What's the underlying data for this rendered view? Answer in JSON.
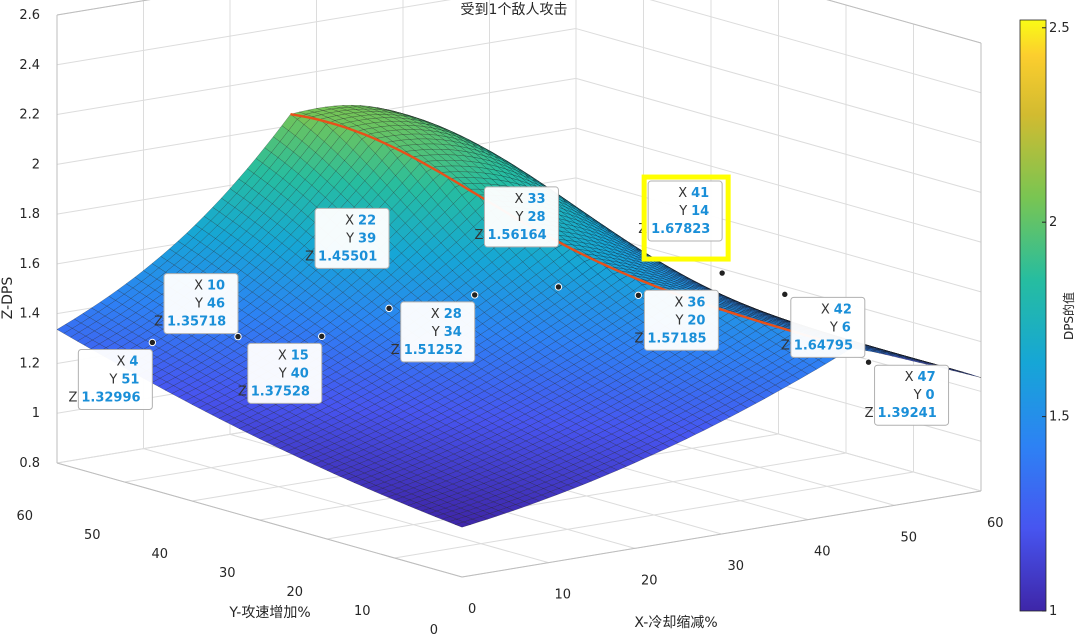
{
  "chart_data": {
    "type": "surface",
    "title": "受到1个敌人攻击",
    "xlabel": "X-冷却缩减%",
    "ylabel": "Y-攻速增加%",
    "zlabel": "Z-DPS",
    "x_range": [
      0,
      60
    ],
    "y_range": [
      0,
      60
    ],
    "z_range": [
      0.8,
      2.6
    ],
    "x_ticks": [
      "0",
      "10",
      "20",
      "30",
      "40",
      "50",
      "60"
    ],
    "y_ticks": [
      "0",
      "10",
      "20",
      "30",
      "40",
      "50",
      "60"
    ],
    "z_ticks": [
      "0.8",
      "1",
      "1.2",
      "1.4",
      "1.6",
      "1.8",
      "2",
      "2.2",
      "2.4",
      "2.6"
    ],
    "colorbar": {
      "label": "DPS的值",
      "range": [
        1,
        2.52
      ],
      "ticks": [
        "1",
        "1.5",
        "2",
        "2.5"
      ],
      "colormap": "parula"
    },
    "grid": true,
    "highlight_curve_color": "#e8501a",
    "highlight_box_color": "#ffff00",
    "data_tips": [
      {
        "x": 4,
        "y": 51,
        "z": 1.32996
      },
      {
        "x": 10,
        "y": 46,
        "z": 1.35718
      },
      {
        "x": 15,
        "y": 40,
        "z": 1.37528
      },
      {
        "x": 22,
        "y": 39,
        "z": 1.45501
      },
      {
        "x": 28,
        "y": 34,
        "z": 1.51252
      },
      {
        "x": 33,
        "y": 28,
        "z": 1.56164
      },
      {
        "x": 36,
        "y": 20,
        "z": 1.57185
      },
      {
        "x": 41,
        "y": 14,
        "z": 1.67823,
        "highlighted": true
      },
      {
        "x": 42,
        "y": 6,
        "z": 1.64795
      },
      {
        "x": 47,
        "y": 0,
        "z": 1.39241
      }
    ],
    "tip_labels": {
      "x": "X",
      "y": "Y",
      "z": "Z"
    }
  }
}
